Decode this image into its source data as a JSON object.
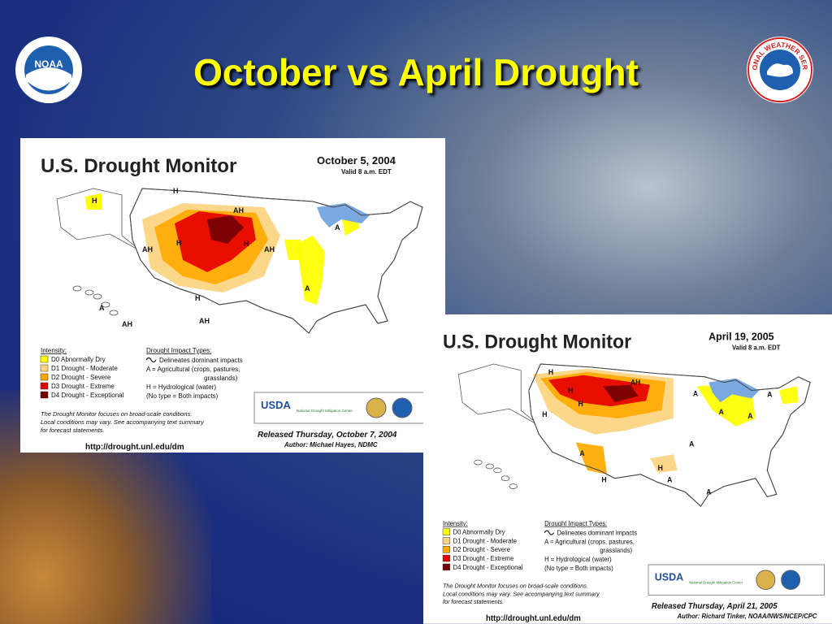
{
  "title": "October vs April Drought",
  "logos": {
    "noaa": "NOAA",
    "nws": "NATIONAL WEATHER SERVICE"
  },
  "maps": [
    {
      "heading": "U.S. Drought Monitor",
      "date": "October 5, 2004",
      "valid": "Valid 8 a.m. EDT",
      "legend_title": "Intensity:",
      "legend": [
        "D0 Abnormally Dry",
        "D1 Drought - Moderate",
        "D2 Drought - Severe",
        "D3 Drought - Extreme",
        "D4 Drought - Exceptional"
      ],
      "impact_title": "Drought Impact Types:",
      "impacts": [
        "Delineates dominant impacts",
        "A = Agricultural (crops, pastures,",
        "grasslands)",
        "H = Hydrological (water)",
        "(No type = Both impacts)"
      ],
      "note": [
        "The Drought Monitor focuses on broad-scale conditions.",
        "Local conditions may vary.  See accompanying text summary",
        "for forecast statements."
      ],
      "partners": [
        "USDA",
        "National Drought Mitigation Center"
      ],
      "released": "Released Thursday, October 7, 2004",
      "author": "Author: Michael Hayes, NDMC",
      "url": "http://drought.unl.edu/dm",
      "labels": [
        "H",
        "H",
        "AH",
        "AH",
        "H",
        "H",
        "H",
        "A",
        "A",
        "AH",
        "A",
        "AH",
        "AH"
      ]
    },
    {
      "heading": "U.S. Drought Monitor",
      "date": "April 19, 2005",
      "valid": "Valid 8 a.m. EDT",
      "legend_title": "Intensity:",
      "legend": [
        "D0 Abnormally Dry",
        "D1 Drought - Moderate",
        "D2 Drought - Severe",
        "D3 Drought - Extreme",
        "D4 Drought - Exceptional"
      ],
      "impact_title": "Drought Impact Types:",
      "impacts": [
        "Delineates dominant impacts",
        "A = Agricultural (crops, pastures,",
        "grasslands)",
        "H = Hydrological (water)",
        "(No type = Both impacts)"
      ],
      "note": [
        "The Drought Monitor focuses on broad-scale conditions.",
        "Local conditions may vary.  See accompanying text summary",
        "for forecast statements."
      ],
      "partners": [
        "USDA",
        "National Drought Mitigation Center"
      ],
      "released": "Released Thursday, April 21, 2005",
      "author": "Author:  Richard Tinker, NOAA/NWS/NCEP/CPC",
      "url": "http://drought.unl.edu/dm",
      "labels": [
        "H",
        "H",
        "H",
        "AH",
        "H",
        "A",
        "A",
        "A",
        "A",
        "H",
        "H",
        "A",
        "A",
        "A",
        "A"
      ]
    }
  ]
}
